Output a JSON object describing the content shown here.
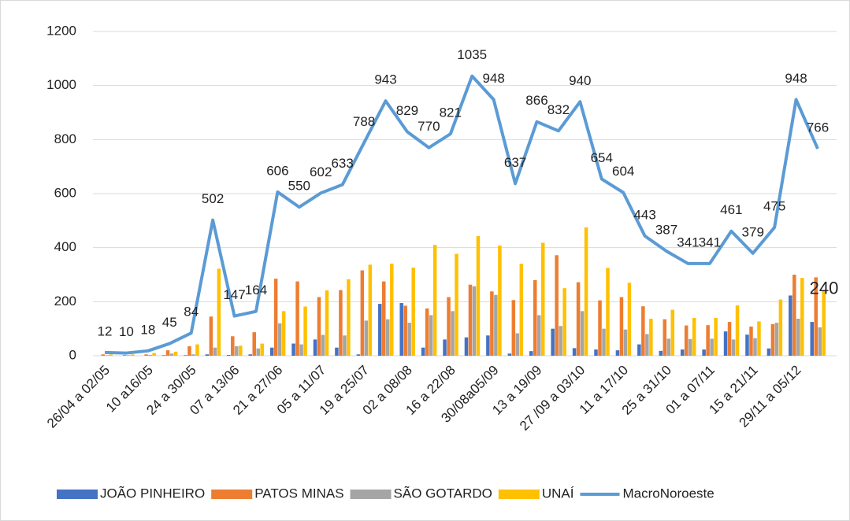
{
  "chart_data": {
    "type": "bar_line",
    "categories": [
      "26/04 a 02/05",
      null,
      "10 a16/05",
      null,
      "24 a 30/05",
      null,
      "07 a 13/06",
      null,
      "21 a 27/06",
      null,
      "05 a 11/07",
      null,
      "19 a 25/07",
      null,
      "02 a 08/08",
      null,
      "16 a 22/08",
      null,
      "30/08a05/09",
      null,
      "13 a 19/09",
      null,
      "27 /09 a 03/10",
      null,
      "11 a 17/10",
      null,
      "25 a 31/10",
      null,
      "01 a 07/11",
      null,
      "15 a 21/11",
      null,
      "29/11 a 05/12",
      null
    ],
    "series": [
      {
        "name": "JOÃO PINHEIRO",
        "type": "bar",
        "color": "#4472c4",
        "values": [
          0,
          0,
          0,
          2,
          2,
          5,
          3,
          5,
          30,
          45,
          60,
          30,
          5,
          192,
          195,
          30,
          60,
          68,
          75,
          8,
          17,
          100,
          28,
          23,
          20,
          42,
          18,
          23,
          23,
          90,
          78,
          27,
          223,
          125
        ]
      },
      {
        "name": "PATOS MINAS",
        "type": "bar",
        "color": "#ed7d31",
        "values": [
          5,
          3,
          5,
          20,
          35,
          145,
          72,
          87,
          285,
          275,
          217,
          243,
          316,
          275,
          185,
          175,
          217,
          263,
          238,
          206,
          280,
          372,
          272,
          205,
          217,
          183,
          135,
          112,
          113,
          125,
          108,
          117,
          300,
          290
        ]
      },
      {
        "name": "SÃO GOTARDO",
        "type": "bar",
        "color": "#a5a5a5",
        "values": [
          2,
          2,
          3,
          8,
          5,
          30,
          35,
          27,
          120,
          42,
          77,
          75,
          130,
          135,
          122,
          150,
          165,
          257,
          225,
          83,
          150,
          110,
          165,
          100,
          97,
          80,
          63,
          62,
          63,
          60,
          65,
          122,
          137,
          105
        ]
      },
      {
        "name": "UNAÍ",
        "type": "bar",
        "color": "#ffc000",
        "values": [
          5,
          5,
          10,
          15,
          42,
          322,
          37,
          45,
          165,
          182,
          242,
          283,
          337,
          341,
          326,
          410,
          377,
          443,
          408,
          340,
          418,
          250,
          475,
          325,
          270,
          137,
          170,
          140,
          140,
          186,
          127,
          208,
          288,
          240
        ],
        "value_labels": [
          null,
          null,
          null,
          null,
          null,
          null,
          null,
          null,
          null,
          null,
          null,
          null,
          null,
          null,
          null,
          null,
          null,
          null,
          null,
          null,
          null,
          null,
          null,
          null,
          null,
          null,
          null,
          null,
          null,
          null,
          null,
          null,
          null,
          240
        ]
      },
      {
        "name": "MacroNoroeste",
        "type": "line",
        "color": "#5b9bd5",
        "data_labels": true,
        "values": [
          12,
          10,
          18,
          45,
          84,
          502,
          147,
          164,
          606,
          550,
          602,
          633,
          788,
          943,
          829,
          770,
          821,
          1035,
          948,
          637,
          866,
          832,
          940,
          654,
          604,
          443,
          387,
          341,
          341,
          461,
          379,
          475,
          948,
          766
        ]
      }
    ],
    "ylim": [
      0,
      1200
    ],
    "yticks": [
      0,
      200,
      400,
      600,
      800,
      1000,
      1200
    ],
    "grid": true,
    "legend": "bottom"
  }
}
